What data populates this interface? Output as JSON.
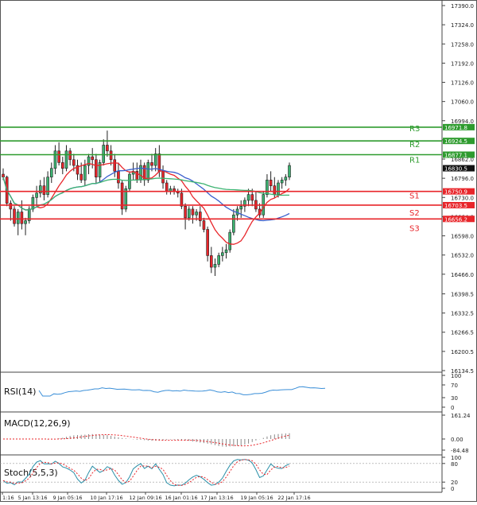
{
  "chart_data": {
    "type": "candlestick",
    "main": {
      "ylim": [
        16134.5,
        17390.0
      ],
      "y_ticks": [
        17390.0,
        17324.0,
        17258.0,
        17192.0,
        17126.0,
        17060.0,
        16994.0,
        16928.0,
        16862.0,
        16796.0,
        16730.0,
        16664.0,
        16598.0,
        16532.0,
        16466.0,
        16398.5,
        16332.5,
        16266.5,
        16200.5,
        16134.5
      ],
      "y_tick_labels": [
        "17390.0",
        "17324.0",
        "17258.0",
        "17192.0",
        "17126.0",
        "17060.0",
        "16994.0",
        "16928.0",
        "16862.0",
        "16796.0",
        "16730.0",
        "16664.0",
        "16598.0",
        "16532.0",
        "16466.0",
        "16398.5",
        "16332.5",
        "16266.5",
        "16200.5",
        "16134.5"
      ],
      "current_price": 16830.5,
      "current_price_label": "16830.5",
      "levels": [
        {
          "name": "R3",
          "value": 16971.8,
          "label": "16971.8",
          "color": "#2e9b2e"
        },
        {
          "name": "R2",
          "value": 16924.5,
          "label": "16924.5",
          "color": "#2e9b2e"
        },
        {
          "name": "R1",
          "value": 16877.1,
          "label": "16877.1",
          "color": "#2e9b2e"
        },
        {
          "name": "S1",
          "value": 16750.9,
          "label": "16750.9",
          "color": "#e8252a"
        },
        {
          "name": "S2",
          "value": 16703.5,
          "label": "16703.5",
          "color": "#e8252a"
        },
        {
          "name": "S3",
          "value": 16656.2,
          "label": "16656.2",
          "color": "#e8252a"
        }
      ],
      "candles": [
        [
          16810,
          16830,
          16790,
          16800
        ],
        [
          16800,
          16805,
          16700,
          16710
        ],
        [
          16710,
          16720,
          16650,
          16690
        ],
        [
          16690,
          16700,
          16630,
          16640
        ],
        [
          16640,
          16690,
          16600,
          16680
        ],
        [
          16680,
          16720,
          16620,
          16640
        ],
        [
          16640,
          16660,
          16600,
          16650
        ],
        [
          16650,
          16700,
          16640,
          16690
        ],
        [
          16690,
          16740,
          16680,
          16730
        ],
        [
          16730,
          16770,
          16700,
          16745
        ],
        [
          16745,
          16790,
          16730,
          16770
        ],
        [
          16770,
          16800,
          16720,
          16740
        ],
        [
          16740,
          16820,
          16730,
          16800
        ],
        [
          16800,
          16850,
          16780,
          16830
        ],
        [
          16830,
          16910,
          16810,
          16890
        ],
        [
          16890,
          16920,
          16840,
          16850
        ],
        [
          16850,
          16870,
          16810,
          16830
        ],
        [
          16830,
          16910,
          16820,
          16890
        ],
        [
          16890,
          16900,
          16840,
          16860
        ],
        [
          16860,
          16880,
          16820,
          16840
        ],
        [
          16840,
          16860,
          16790,
          16810
        ],
        [
          16810,
          16850,
          16780,
          16790
        ],
        [
          16790,
          16860,
          16770,
          16840
        ],
        [
          16840,
          16880,
          16810,
          16870
        ],
        [
          16870,
          16900,
          16830,
          16860
        ],
        [
          16860,
          16880,
          16780,
          16800
        ],
        [
          16800,
          16860,
          16780,
          16850
        ],
        [
          16850,
          16930,
          16840,
          16910
        ],
        [
          16910,
          16960,
          16870,
          16890
        ],
        [
          16890,
          16910,
          16840,
          16860
        ],
        [
          16860,
          16880,
          16800,
          16820
        ],
        [
          16820,
          16850,
          16760,
          16780
        ],
        [
          16780,
          16790,
          16670,
          16690
        ],
        [
          16690,
          16770,
          16680,
          16760
        ],
        [
          16760,
          16820,
          16750,
          16810
        ],
        [
          16810,
          16850,
          16790,
          16820
        ],
        [
          16820,
          16850,
          16780,
          16790
        ],
        [
          16790,
          16860,
          16780,
          16840
        ],
        [
          16840,
          16850,
          16770,
          16790
        ],
        [
          16790,
          16860,
          16780,
          16850
        ],
        [
          16850,
          16880,
          16820,
          16840
        ],
        [
          16840,
          16900,
          16820,
          16880
        ],
        [
          16880,
          16910,
          16800,
          16820
        ],
        [
          16820,
          16840,
          16760,
          16780
        ],
        [
          16780,
          16790,
          16740,
          16750
        ],
        [
          16750,
          16770,
          16740,
          16760
        ],
        [
          16760,
          16770,
          16740,
          16750
        ],
        [
          16750,
          16760,
          16730,
          16745
        ],
        [
          16745,
          16760,
          16690,
          16700
        ],
        [
          16700,
          16710,
          16620,
          16660
        ],
        [
          16660,
          16700,
          16650,
          16690
        ],
        [
          16690,
          16700,
          16640,
          16670
        ],
        [
          16670,
          16690,
          16650,
          16680
        ],
        [
          16680,
          16700,
          16630,
          16650
        ],
        [
          16650,
          16660,
          16610,
          16620
        ],
        [
          16620,
          16630,
          16510,
          16530
        ],
        [
          16530,
          16560,
          16470,
          16490
        ],
        [
          16490,
          16520,
          16460,
          16500
        ],
        [
          16500,
          16540,
          16490,
          16530
        ],
        [
          16530,
          16560,
          16510,
          16540
        ],
        [
          16540,
          16570,
          16520,
          16550
        ],
        [
          16550,
          16620,
          16540,
          16610
        ],
        [
          16610,
          16690,
          16600,
          16670
        ],
        [
          16670,
          16700,
          16650,
          16690
        ],
        [
          16690,
          16720,
          16660,
          16700
        ],
        [
          16700,
          16730,
          16680,
          16720
        ],
        [
          16720,
          16760,
          16700,
          16740
        ],
        [
          16740,
          16760,
          16700,
          16720
        ],
        [
          16720,
          16750,
          16680,
          16690
        ],
        [
          16690,
          16710,
          16660,
          16670
        ],
        [
          16670,
          16750,
          16660,
          16740
        ],
        [
          16740,
          16810,
          16730,
          16790
        ],
        [
          16790,
          16820,
          16750,
          16770
        ],
        [
          16770,
          16800,
          16730,
          16740
        ],
        [
          16740,
          16790,
          16730,
          16780
        ],
        [
          16780,
          16800,
          16760,
          16790
        ],
        [
          16790,
          16810,
          16770,
          16800
        ],
        [
          16800,
          16850,
          16790,
          16840
        ]
      ]
    },
    "x_labels": [
      "1:16",
      "5 Jan 13:16",
      "9 Jan 05:16",
      "10 Jan 17:16",
      "12 Jan 09:16",
      "16 Jan 01:16",
      "17 Jan 13:16",
      "19 Jan 05:16",
      "22 Jan 17:16"
    ],
    "indicators": {
      "rsi": {
        "label": "RSI(14)",
        "ticks": [
          "100",
          "70",
          "30",
          "0"
        ],
        "color": "#3b8fd8"
      },
      "macd": {
        "label": "MACD(12,26,9)",
        "ticks": [
          "161.24",
          "0.00",
          "-84.48"
        ]
      },
      "stoch": {
        "label": "Stoch(5,5,3)",
        "ticks": [
          "100",
          "80",
          "20",
          "0"
        ]
      }
    }
  }
}
